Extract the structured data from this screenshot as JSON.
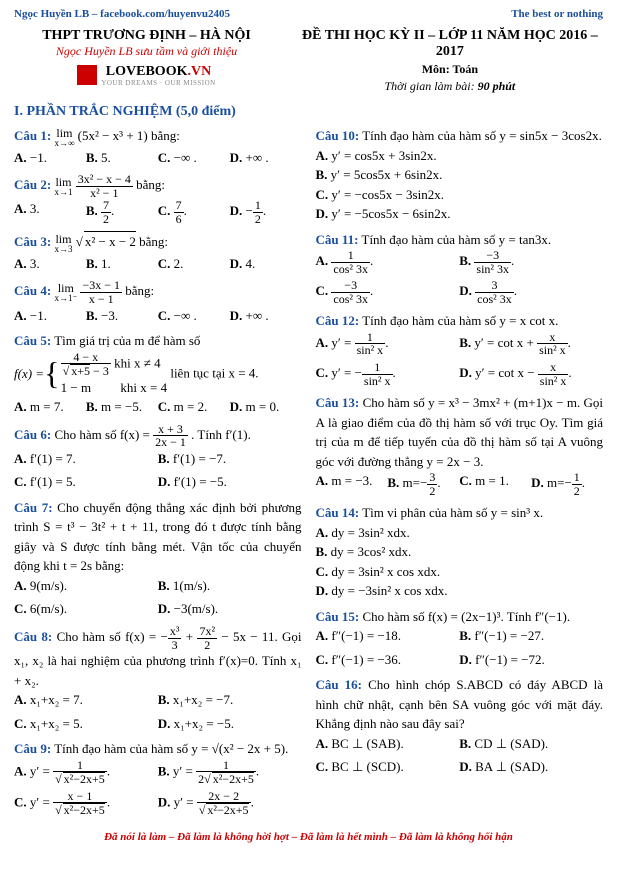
{
  "topbar": {
    "left": "Ngọc Huyền LB – facebook.com/huyenvu2405",
    "right": "The best or nothing"
  },
  "header": {
    "school": "THPT TRƯƠNG ĐỊNH – HÀ NỘI",
    "subtitle": "Ngọc Huyền LB sưu tầm và giới thiệu",
    "logo_main": "LOVEBOOK",
    "logo_suffix": ".VN",
    "logo_tag": "YOUR DREAMS · OUR MISSION",
    "exam": "ĐỀ THI HỌC KỲ II – LỚP 11 NĂM HỌC 2016 – 2017",
    "subject": "Môn: Toán",
    "time_label": "Thời gian làm bài:",
    "time_val": "90 phút"
  },
  "section1": "I. PHẦN TRẮC NGHIỆM (5,0 điểm)",
  "q": {
    "1": {
      "n": "Câu 1:",
      "stem_a": "lim",
      "stem_sub": "x→∞",
      "stem_expr": "(5x² − x³ + 1)",
      "stem_tail": " bằng:",
      "opts": [
        "−1.",
        "5.",
        "−∞ .",
        "+∞ ."
      ]
    },
    "2": {
      "n": "Câu 2:",
      "stem_a": "lim",
      "stem_sub": "x→1",
      "num": "3x² − x − 4",
      "den": "x² − 1",
      "tail": " bằng:",
      "opts": [
        "3.",
        "7/2 .",
        "7/6 .",
        "−1/2 ."
      ]
    },
    "3": {
      "n": "Câu 3:",
      "stem_a": "lim",
      "stem_sub": "x→3",
      "rad": "x² − x − 2",
      "tail": " bằng:",
      "opts": [
        "3.",
        "1.",
        "2.",
        "4."
      ]
    },
    "4": {
      "n": "Câu 4:",
      "stem_a": "lim",
      "stem_sub": "x→1⁻",
      "num": "−3x − 1",
      "den": "x − 1",
      "tail": " bằng:",
      "opts": [
        "−1.",
        "−3.",
        "−∞ .",
        "+∞ ."
      ]
    },
    "5": {
      "n": "Câu 5:",
      "stem": "Tìm giá trị của m để hàm số",
      "fx": "f(x) = ",
      "case1_num": "4 − x",
      "case1_den": "√(x+5) − 3",
      "case1_cond": " khi x ≠ 4",
      "case2": "1 − m",
      "case2_cond": " khi x = 4",
      "tail": " liên tục tại x = 4.",
      "opts": [
        "m = 7.",
        "m = −5.",
        "m = 2.",
        "m = 0."
      ]
    },
    "6": {
      "n": "Câu 6:",
      "stem_a": "Cho hàm số f(x) = ",
      "num": "x + 3",
      "den": "2x − 1",
      "tail": ". Tính f′(1).",
      "opts": [
        "f′(1) = 7.",
        "f′(1) = −7.",
        "f′(1) = 5.",
        "f′(1) = −5."
      ]
    },
    "7": {
      "n": "Câu 7:",
      "stem": "Cho chuyển động thẳng xác định bởi phương trình S = t³ − 3t² + t + 11, trong đó t được tính bằng giây và S được tính bằng mét. Vận tốc của chuyển động khi t = 2s bằng:",
      "opts": [
        "9(m/s).",
        "1(m/s).",
        "6(m/s).",
        "−3(m/s)."
      ]
    },
    "8": {
      "n": "Câu 8:",
      "stem_a": "Cho hàm số f(x) = −",
      "t1n": "x³",
      "t1d": "3",
      "mid": " + ",
      "t2n": "7x²",
      "t2d": "2",
      "tail": " − 5x − 11.",
      "stem2": "Gọi x₁, x₂ là hai nghiệm của phương trình f′(x)=0. Tính x₁ + x₂.",
      "opts": [
        "x₁+x₂ = 7.",
        "x₁+x₂ = −7.",
        "x₁+x₂ = 5.",
        "x₁+x₂ = −5."
      ]
    },
    "9": {
      "n": "Câu 9:",
      "stem": "Tính đạo hàm của hàm số y = √(x² − 2x + 5).",
      "A_n": "1",
      "A_d": "√(x² − 2x + 5)",
      "B_n": "1",
      "B_d": "2√(x² − 2x + 5)",
      "C_n": "x − 1",
      "C_d": "√(x² − 2x + 5)",
      "D_n": "2x − 2",
      "D_d": "√(x² − 2x + 5)"
    },
    "10": {
      "n": "Câu 10:",
      "stem": "Tính đạo hàm của hàm số y = sin5x − 3cos2x.",
      "opts": [
        "y′ = cos5x + 3sin2x.",
        "y′ = 5cos5x + 6sin2x.",
        "y′ = −cos5x − 3sin2x.",
        "y′ = −5cos5x − 6sin2x."
      ]
    },
    "11": {
      "n": "Câu 11:",
      "stem": "Tính đạo hàm của hàm số y = tan3x.",
      "A_n": "1",
      "A_d": "cos² 3x",
      "B_n": "−3",
      "B_d": "sin² 3x",
      "C_n": "−3",
      "C_d": "cos² 3x",
      "D_n": "3",
      "D_d": "cos² 3x"
    },
    "12": {
      "n": "Câu 12:",
      "stem": "Tính đạo hàm của hàm số y = x cot x.",
      "A_pre": "y′ = ",
      "A_n": "1",
      "A_d": "sin² x",
      "B_pre": "y′ = cot x + ",
      "B_n": "x",
      "B_d": "sin² x",
      "C_pre": "y′ = −",
      "C_n": "1",
      "C_d": "sin² x",
      "D_pre": "y′ = cot x − ",
      "D_n": "x",
      "D_d": "sin² x"
    },
    "13": {
      "n": "Câu 13:",
      "stem": "Cho hàm số y = x³ − 3mx² + (m+1)x − m. Gọi A là giao điểm của đồ thị hàm số với trục Oy. Tìm giá trị của m để tiếp tuyến của đồ thị hàm số tại A vuông góc với đường thẳng y = 2x − 3.",
      "opts": [
        "m = −3.",
        "m = −3/2 .",
        "m = 1.",
        "m = −1/2 ."
      ]
    },
    "14": {
      "n": "Câu 14:",
      "stem": "Tìm vi phân của hàm số y = sin³ x.",
      "opts": [
        "dy = 3sin² xdx.",
        "dy = 3cos² xdx.",
        "dy = 3sin² x cos xdx.",
        "dy = −3sin² x cos xdx."
      ]
    },
    "15": {
      "n": "Câu 15:",
      "stem_a": "Cho hàm số f(x) = (2x−1)³. Tính f″(−1).",
      "opts": [
        "f″(−1) = −18.",
        "f″(−1) = −27.",
        "f″(−1) = −36.",
        "f″(−1) = −72."
      ]
    },
    "16": {
      "n": "Câu 16:",
      "stem": "Cho hình chóp S.ABCD có đáy ABCD là hình chữ nhật, cạnh bên SA vuông góc với mặt đáy. Khẳng định nào sau đây sai?",
      "opts": [
        "BC ⊥ (SAB).",
        "CD ⊥ (SAD).",
        "BC ⊥ (SCD).",
        "BA ⊥ (SAD)."
      ]
    }
  },
  "footer": "Đã nói là làm – Đã làm là không hời hợt – Đã làm là hết mình – Đã làm là không hối hận",
  "labels": [
    "A.",
    "B.",
    "C.",
    "D."
  ]
}
